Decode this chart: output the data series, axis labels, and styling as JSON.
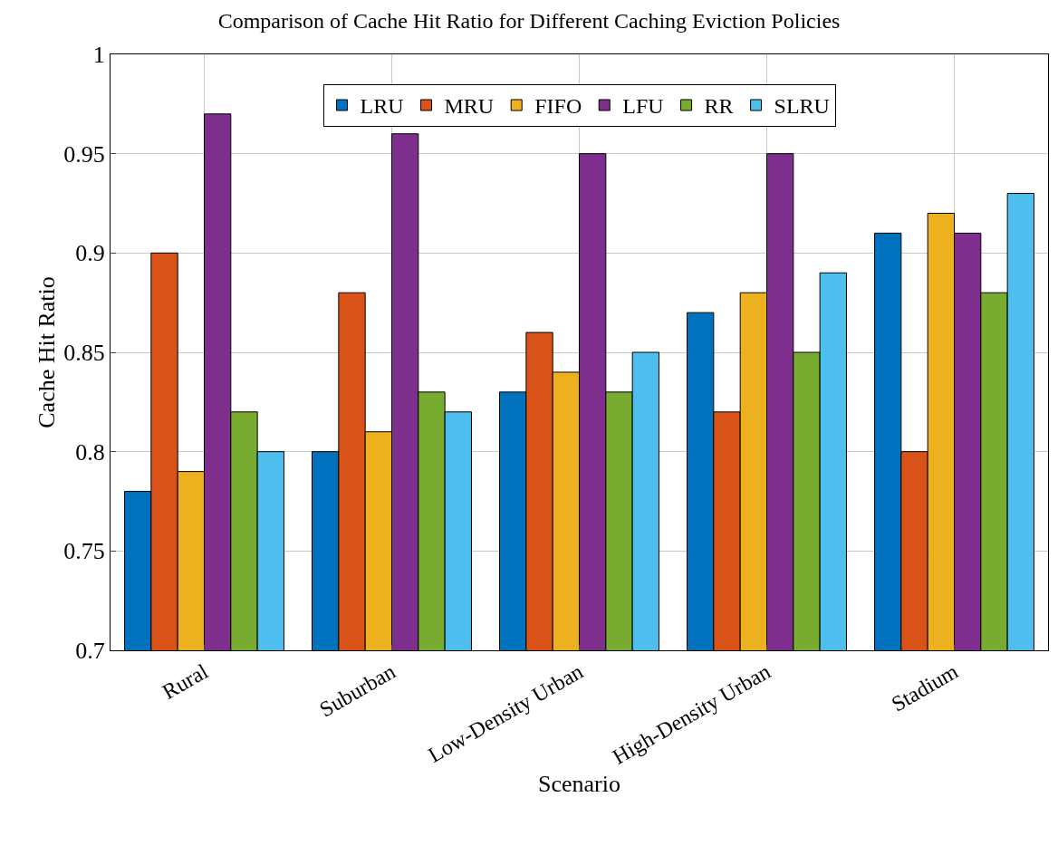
{
  "chart_data": {
    "type": "bar",
    "title": "Comparison of Cache Hit Ratio for Different Caching Eviction Policies",
    "xlabel": "Scenario",
    "ylabel": "Cache Hit Ratio",
    "categories": [
      "Rural",
      "Suburban",
      "Low-Density Urban",
      "High-Density Urban",
      "Stadium"
    ],
    "series": [
      {
        "name": "LRU",
        "color": "#0072bd",
        "values": [
          0.78,
          0.8,
          0.83,
          0.87,
          0.91
        ]
      },
      {
        "name": "MRU",
        "color": "#d95319",
        "values": [
          0.9,
          0.88,
          0.86,
          0.82,
          0.8
        ]
      },
      {
        "name": "FIFO",
        "color": "#edb120",
        "values": [
          0.79,
          0.81,
          0.84,
          0.88,
          0.92
        ]
      },
      {
        "name": "LFU",
        "color": "#7e2f8e",
        "values": [
          0.97,
          0.96,
          0.95,
          0.95,
          0.91
        ]
      },
      {
        "name": "RR",
        "color": "#77ac30",
        "values": [
          0.82,
          0.83,
          0.83,
          0.85,
          0.88
        ]
      },
      {
        "name": "SLRU",
        "color": "#4dbeee",
        "values": [
          0.8,
          0.82,
          0.85,
          0.89,
          0.93
        ]
      }
    ],
    "ylim": [
      0.7,
      1
    ],
    "yticks": [
      0.7,
      0.75,
      0.8,
      0.85,
      0.9,
      0.95,
      1
    ],
    "grid": true,
    "legend": "top"
  }
}
